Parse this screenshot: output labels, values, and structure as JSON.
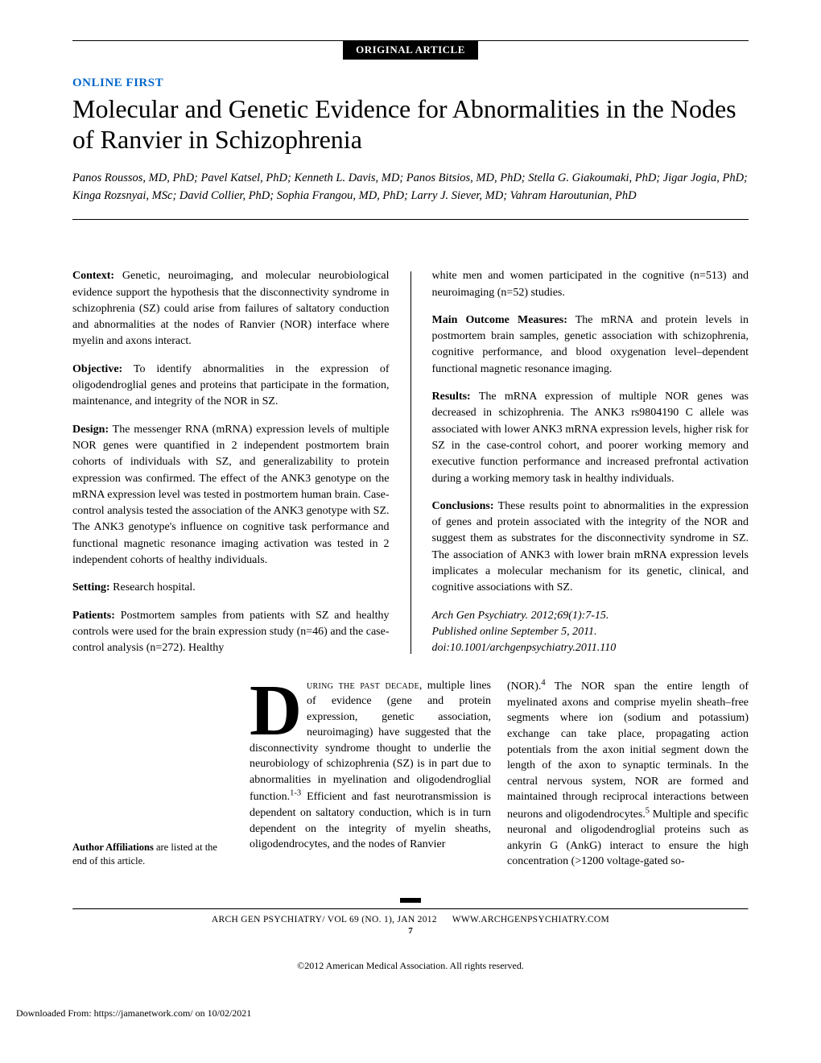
{
  "article_type": "ORIGINAL ARTICLE",
  "online_first": "ONLINE FIRST",
  "title": "Molecular and Genetic Evidence for Abnormalities in the Nodes of Ranvier in Schizophrenia",
  "authors": "Panos Roussos, MD, PhD; Pavel Katsel, PhD; Kenneth L. Davis, MD; Panos Bitsios, MD, PhD; Stella G. Giakoumaki, PhD; Jigar Jogia, PhD; Kinga Rozsnyai, MSc; David Collier, PhD; Sophia Frangou, MD, PhD; Larry J. Siever, MD; Vahram Haroutunian, PhD",
  "abstract": {
    "context": {
      "label": "Context:",
      "text": " Genetic, neuroimaging, and molecular neurobiological evidence support the hypothesis that the disconnectivity syndrome in schizophrenia (SZ) could arise from failures of saltatory conduction and abnormalities at the nodes of Ranvier (NOR) interface where myelin and axons interact."
    },
    "objective": {
      "label": "Objective:",
      "text": " To identify abnormalities in the expression of oligodendroglial genes and proteins that participate in the formation, maintenance, and integrity of the NOR in SZ."
    },
    "design": {
      "label": "Design:",
      "text": " The messenger RNA (mRNA) expression levels of multiple NOR genes were quantified in 2 independent postmortem brain cohorts of individuals with SZ, and generalizability to protein expression was confirmed. The effect of the ANK3 genotype on the mRNA expression level was tested in postmortem human brain. Case-control analysis tested the association of the ANK3 genotype with SZ. The ANK3 genotype's influence on cognitive task performance and functional magnetic resonance imaging activation was tested in 2 independent cohorts of healthy individuals."
    },
    "setting": {
      "label": "Setting:",
      "text": " Research hospital."
    },
    "patients": {
      "label": "Patients:",
      "text": " Postmortem samples from patients with SZ and healthy controls were used for the brain expression study (n=46) and the case-control analysis (n=272). Healthy white men and women participated in the cognitive (n=513) and neuroimaging (n=52) studies."
    },
    "main_outcome": {
      "label": "Main Outcome Measures:",
      "text": " The mRNA and protein levels in postmortem brain samples, genetic association with schizophrenia, cognitive performance, and blood oxygenation level–dependent functional magnetic resonance imaging."
    },
    "results": {
      "label": "Results:",
      "text": " The mRNA expression of multiple NOR genes was decreased in schizophrenia. The ANK3 rs9804190 C allele was associated with lower ANK3 mRNA expression levels, higher risk for SZ in the case-control cohort, and poorer working memory and executive function performance and increased prefrontal activation during a working memory task in healthy individuals."
    },
    "conclusions": {
      "label": "Conclusions:",
      "text": " These results point to abnormalities in the expression of genes and protein associated with the integrity of the NOR and suggest them as substrates for the disconnectivity syndrome in SZ. The association of ANK3 with lower brain mRNA expression levels implicates a molecular mechanism for its genetic, clinical, and cognitive associations with SZ."
    },
    "citation": "Arch Gen Psychiatry. 2012;69(1):7-15.\nPublished online September 5, 2011.\ndoi:10.1001/archgenpsychiatry.2011.110"
  },
  "body": {
    "dropcap": "D",
    "col1_lead": "uring the past decade,",
    "col1_rest": " multiple lines of evidence (gene and protein expression, genetic association, neuroimaging) have suggested that the disconnectivity syndrome thought to underlie the neurobiology of schizophrenia (SZ) is in part due to abnormalities in myelination and oligodendroglial function.1-3 Efficient and fast neurotransmission is dependent on saltatory conduction, which is in turn dependent on the integrity of myelin sheaths, oligodendrocytes, and the nodes of Ranvier",
    "col2": "(NOR).4 The NOR span the entire length of myelinated axons and comprise myelin sheath–free segments where ion (sodium and potassium) exchange can take place, propagating action potentials from the axon initial segment down the length of the axon to synaptic terminals. In the central nervous system, NOR are formed and maintained through reciprocal interactions between neurons and oligodendrocytes.5 Multiple and specific neuronal and oligodendroglial proteins such as ankyrin G (AnkG) interact to ensure the high concentration (>1200 voltage-gated so-"
  },
  "affiliation_note": {
    "bold": "Author Affiliations",
    "rest": " are listed at the end of this article."
  },
  "footer": {
    "left": "ARCH GEN PSYCHIATRY/ VOL 69 (NO. 1), JAN 2012",
    "right": "WWW.ARCHGENPSYCHIATRY.COM",
    "page": "7",
    "copyright": "©2012 American Medical Association. All rights reserved.",
    "download": "Downloaded From: https://jamanetwork.com/ on 10/02/2021"
  }
}
